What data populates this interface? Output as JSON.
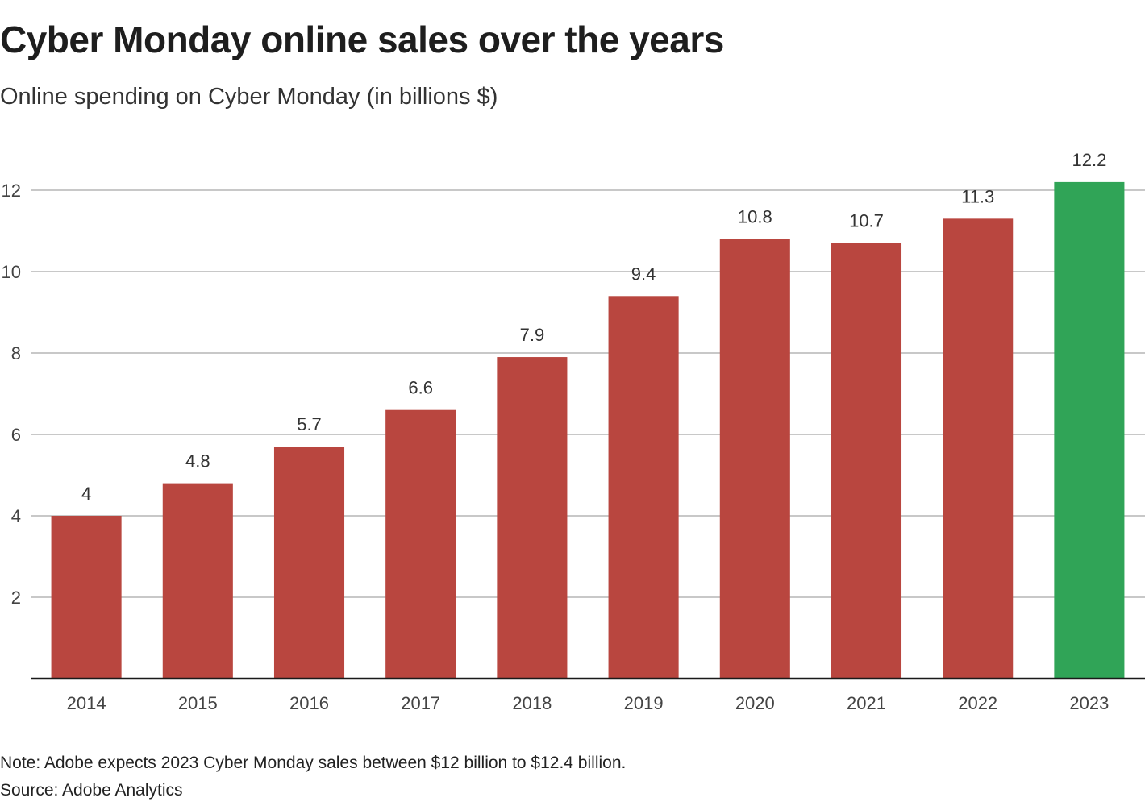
{
  "chart_data": {
    "type": "bar",
    "title": "Cyber Monday online sales over the years",
    "subtitle": "Online spending on Cyber Monday (in billions $)",
    "xlabel": "",
    "ylabel": "",
    "categories": [
      "2014",
      "2015",
      "2016",
      "2017",
      "2018",
      "2019",
      "2020",
      "2021",
      "2022",
      "2023"
    ],
    "values": [
      4,
      4.8,
      5.7,
      6.6,
      7.9,
      9.4,
      10.8,
      10.7,
      11.3,
      12.2
    ],
    "data_labels": [
      "4",
      "4.8",
      "5.7",
      "6.6",
      "7.9",
      "9.4",
      "10.8",
      "10.7",
      "11.3",
      "12.2"
    ],
    "ylim": [
      0,
      12
    ],
    "yticks": [
      2,
      4,
      6,
      8,
      10,
      12
    ],
    "grid": true,
    "legend": "none",
    "colors": {
      "default_bar": "#b9463f",
      "highlight_bar": "#30a457",
      "highlight_category": "2023",
      "gridline": "#c8c8c8",
      "baseline": "#1a1a1a"
    }
  },
  "notes": {
    "note": "Note: Adobe expects 2023 Cyber Monday sales between $12 billion to $12.4 billion.",
    "source": "Source: Adobe Analytics"
  }
}
